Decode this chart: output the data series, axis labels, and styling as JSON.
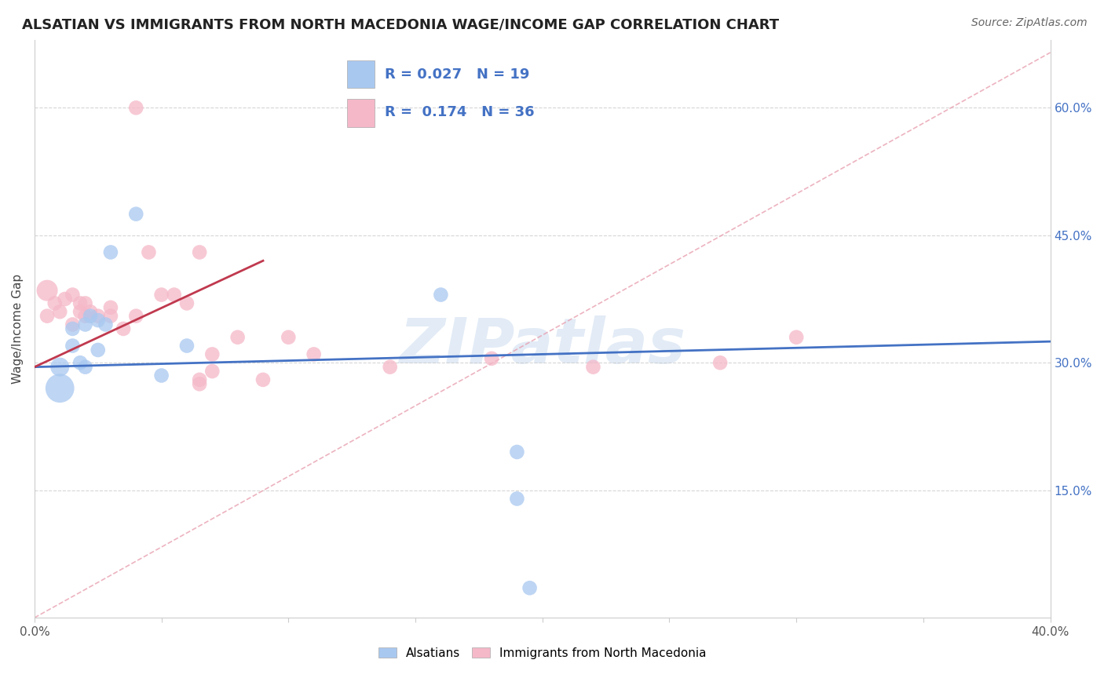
{
  "title": "ALSATIAN VS IMMIGRANTS FROM NORTH MACEDONIA WAGE/INCOME GAP CORRELATION CHART",
  "source": "Source: ZipAtlas.com",
  "ylabel": "Wage/Income Gap",
  "watermark": "ZIPatlas",
  "xlim": [
    0.0,
    0.4
  ],
  "ylim": [
    0.0,
    0.68
  ],
  "xticks": [
    0.0,
    0.05,
    0.1,
    0.15,
    0.2,
    0.25,
    0.3,
    0.35,
    0.4
  ],
  "yticks_right": [
    0.15,
    0.3,
    0.45,
    0.6
  ],
  "ytick_labels_right": [
    "15.0%",
    "30.0%",
    "45.0%",
    "60.0%"
  ],
  "legend_R1": "0.027",
  "legend_N1": "19",
  "legend_R2": "0.174",
  "legend_N2": "36",
  "legend_label1": "Alsatians",
  "legend_label2": "Immigrants from North Macedonia",
  "blue_color": "#a8c8f0",
  "pink_color": "#f5b8c8",
  "blue_scatter_x": [
    0.01,
    0.01,
    0.015,
    0.015,
    0.018,
    0.02,
    0.02,
    0.022,
    0.025,
    0.025,
    0.028,
    0.03,
    0.04,
    0.05,
    0.06,
    0.16,
    0.19,
    0.19,
    0.195
  ],
  "blue_scatter_y": [
    0.295,
    0.27,
    0.32,
    0.34,
    0.3,
    0.295,
    0.345,
    0.355,
    0.35,
    0.315,
    0.345,
    0.43,
    0.475,
    0.285,
    0.32,
    0.38,
    0.195,
    0.14,
    0.035
  ],
  "blue_scatter_size": [
    300,
    700,
    180,
    180,
    180,
    180,
    180,
    180,
    180,
    180,
    180,
    180,
    180,
    180,
    180,
    180,
    180,
    180,
    180
  ],
  "pink_scatter_x": [
    0.005,
    0.005,
    0.008,
    0.01,
    0.012,
    0.015,
    0.015,
    0.018,
    0.018,
    0.02,
    0.02,
    0.022,
    0.025,
    0.03,
    0.03,
    0.035,
    0.04,
    0.04,
    0.045,
    0.05,
    0.055,
    0.06,
    0.065,
    0.065,
    0.065,
    0.07,
    0.07,
    0.08,
    0.09,
    0.1,
    0.11,
    0.14,
    0.18,
    0.22,
    0.27,
    0.3
  ],
  "pink_scatter_y": [
    0.385,
    0.355,
    0.37,
    0.36,
    0.375,
    0.38,
    0.345,
    0.37,
    0.36,
    0.37,
    0.355,
    0.36,
    0.355,
    0.365,
    0.355,
    0.34,
    0.355,
    0.6,
    0.43,
    0.38,
    0.38,
    0.37,
    0.28,
    0.275,
    0.43,
    0.29,
    0.31,
    0.33,
    0.28,
    0.33,
    0.31,
    0.295,
    0.305,
    0.295,
    0.3,
    0.33
  ],
  "pink_scatter_size": [
    380,
    180,
    180,
    180,
    180,
    180,
    180,
    180,
    180,
    180,
    180,
    180,
    180,
    180,
    180,
    180,
    180,
    180,
    180,
    180,
    180,
    180,
    180,
    180,
    180,
    180,
    180,
    180,
    180,
    180,
    180,
    180,
    180,
    180,
    180,
    180
  ],
  "blue_line_x": [
    0.0,
    0.4
  ],
  "blue_line_y": [
    0.295,
    0.325
  ],
  "pink_line_x": [
    0.0,
    0.09
  ],
  "pink_line_y": [
    0.295,
    0.42
  ],
  "diag_line_x": [
    0.0,
    0.4
  ],
  "diag_line_y": [
    0.0,
    0.665
  ],
  "grid_color": "#cccccc",
  "title_fontsize": 13,
  "source_fontsize": 10
}
